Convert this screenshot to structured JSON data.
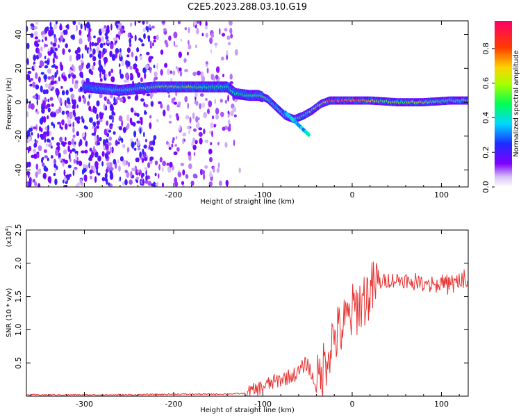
{
  "title": "C2E5.2023.288.03.10.G19",
  "colors": {
    "snr_line": "#e83030",
    "background": "#ffffff"
  },
  "chart_data": [
    {
      "type": "heatmap",
      "xlabel": "Height of straight line (km)",
      "ylabel": "Frequency (Hz)",
      "xlim": [
        -365,
        130
      ],
      "ylim": [
        -50,
        48
      ],
      "xticks": [
        -300,
        -200,
        -100,
        0,
        100
      ],
      "yticks": [
        -40,
        -20,
        0,
        20,
        40
      ],
      "x_tick_labels": [
        "-300",
        "-200",
        "-100",
        "0",
        "100"
      ],
      "y_tick_labels": [
        "-40",
        "-20",
        "0",
        "20",
        "40"
      ],
      "colorbar": {
        "label": "Normalized spectral amplitude",
        "range": [
          0,
          0.96
        ],
        "ticks": [
          0.0,
          0.2,
          0.4,
          0.6,
          0.8
        ],
        "tick_labels": [
          "0.0",
          "0.2",
          "0.4",
          "0.6",
          "0.8"
        ]
      },
      "ridge_frequency_hz": [
        [
          -300,
          9
        ],
        [
          -280,
          8
        ],
        [
          -260,
          7
        ],
        [
          -240,
          8
        ],
        [
          -220,
          9
        ],
        [
          -200,
          9
        ],
        [
          -180,
          9
        ],
        [
          -160,
          9
        ],
        [
          -140,
          9
        ],
        [
          -130,
          5
        ],
        [
          -115,
          4
        ],
        [
          -105,
          4
        ],
        [
          -95,
          2
        ],
        [
          -85,
          -3
        ],
        [
          -75,
          -8
        ],
        [
          -65,
          -10
        ],
        [
          -55,
          -8
        ],
        [
          -45,
          -5
        ],
        [
          -35,
          -1
        ],
        [
          -25,
          1
        ],
        [
          -10,
          1
        ],
        [
          0,
          1
        ],
        [
          20,
          1
        ],
        [
          50,
          0
        ],
        [
          80,
          0
        ],
        [
          110,
          1
        ],
        [
          130,
          1
        ]
      ],
      "ridge_amplitude": [
        [
          -300,
          0.3
        ],
        [
          -260,
          0.4
        ],
        [
          -220,
          0.55
        ],
        [
          -180,
          0.55
        ],
        [
          -140,
          0.45
        ],
        [
          -120,
          0.5
        ],
        [
          -100,
          0.5
        ],
        [
          -80,
          0.4
        ],
        [
          -60,
          0.4
        ],
        [
          -40,
          0.6
        ],
        [
          -20,
          0.85
        ],
        [
          0,
          0.75
        ],
        [
          20,
          0.7
        ],
        [
          40,
          0.55
        ],
        [
          60,
          0.6
        ],
        [
          80,
          0.65
        ],
        [
          100,
          0.5
        ],
        [
          130,
          0.5
        ]
      ]
    },
    {
      "type": "line",
      "xlabel": "Height of straight line (km)",
      "ylabel": "SNR (10 * v/v)",
      "y_multiplier": "(x10",
      "y_multiplier_exp": "4",
      "y_multiplier_close": ")",
      "xlim": [
        -365,
        130
      ],
      "ylim": [
        0,
        2.5
      ],
      "xticks": [
        -300,
        -200,
        -100,
        0,
        100
      ],
      "yticks": [
        0.5,
        1.0,
        1.5,
        2.0,
        2.5
      ],
      "x_tick_labels": [
        "-300",
        "-200",
        "-100",
        "0",
        "100"
      ],
      "y_tick_labels": [
        "0.5",
        "1.0",
        "1.5",
        "2.0",
        "2.5"
      ],
      "series": [
        {
          "x": [
            -365,
            -300,
            -250,
            -200,
            -150,
            -120,
            -110,
            -100,
            -90,
            -80,
            -70,
            -60,
            -55,
            -50,
            -45,
            -40,
            -35,
            -30,
            -25,
            -20,
            -15,
            -10,
            -5,
            0,
            5,
            10,
            15,
            20,
            25,
            30,
            40,
            50,
            60,
            70,
            80,
            90,
            100,
            110,
            120,
            130
          ],
          "y": [
            0.02,
            0.02,
            0.02,
            0.03,
            0.03,
            0.04,
            0.08,
            0.14,
            0.2,
            0.25,
            0.3,
            0.35,
            0.45,
            0.5,
            0.3,
            0.15,
            0.3,
            0.55,
            0.75,
            0.9,
            0.95,
            1.05,
            1.15,
            1.25,
            1.35,
            1.4,
            1.5,
            1.55,
            1.65,
            1.7,
            1.75,
            1.75,
            1.75,
            1.72,
            1.72,
            1.7,
            1.7,
            1.68,
            1.7,
            1.72
          ]
        }
      ]
    }
  ]
}
